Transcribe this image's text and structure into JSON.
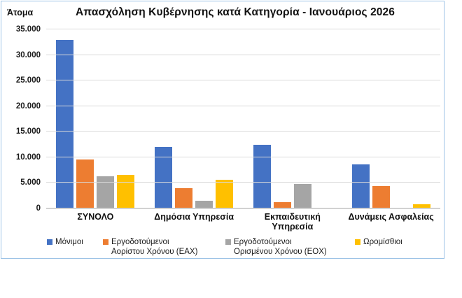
{
  "window": {
    "background_color": "#FFFFFF",
    "frame_border_color": "#9DC3E6"
  },
  "chart_data": {
    "type": "bar",
    "title": "Απασχόληση Κυβέρνησης κατά Κατηγορία - Ιανουάριος 2026",
    "ylabel": "Άτομα",
    "xlabel": "",
    "ylim": [
      0,
      35000
    ],
    "y_tick_interval": 5000,
    "y_tick_labels": [
      "0",
      "5.000",
      "10.000",
      "15.000",
      "20.000",
      "25.000",
      "30.000",
      "35.000"
    ],
    "grid": true,
    "gridline_color": "#D9D9D9",
    "legend_position": "bottom",
    "categories": [
      "ΣΥΝΟΛΟ",
      "Δημόσια Υπηρεσία",
      "Εκπαιδευτική Υπηρεσία",
      "Δυνάμεις Ασφαλείας"
    ],
    "x_tick_display": [
      "ΣΥΝΟΛΟ",
      "Δημόσια Υπηρεσία",
      "Εκπαιδευτική\nΥπηρεσία",
      "Δυνάμεις Ασφαλείας"
    ],
    "legend_display": [
      "Μόνιμοι",
      "Εργοδοτούμενοι\nΑορίστου Χρόνου (ΕΑΧ)",
      "Εργοδοτούμενοι\nΟρισμένου Χρόνου (ΕΟΧ)",
      "Ωρομίσθιοι"
    ],
    "series": [
      {
        "name": "Μόνιμοι",
        "color": "#4472C4",
        "values": [
          33000,
          12000,
          12400,
          8600
        ]
      },
      {
        "name": "Εργοδοτούμενοι Αορίστου Χρόνου (ΕΑΧ)",
        "color": "#ED7D31",
        "values": [
          9600,
          4000,
          1200,
          4400
        ]
      },
      {
        "name": "Εργοδοτούμενοι Ορισμένου Χρόνου (ΕΟΧ)",
        "color": "#A5A5A5",
        "values": [
          6300,
          1500,
          4800,
          0
        ]
      },
      {
        "name": "Ωρομίσθιοι",
        "color": "#FFC000",
        "values": [
          6600,
          5600,
          200,
          800
        ]
      }
    ]
  }
}
